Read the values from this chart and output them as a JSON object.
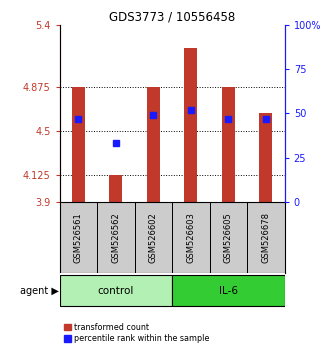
{
  "title": "GDS3773 / 10556458",
  "samples": [
    "GSM526561",
    "GSM526562",
    "GSM526602",
    "GSM526603",
    "GSM526605",
    "GSM526678"
  ],
  "transformed_counts": [
    4.875,
    4.125,
    4.875,
    5.2,
    4.875,
    4.65
  ],
  "percentile_ranks": [
    47,
    33,
    49,
    52,
    47,
    47
  ],
  "groups": [
    "control",
    "control",
    "control",
    "IL-6",
    "IL-6",
    "IL-6"
  ],
  "ylim": [
    3.9,
    5.4
  ],
  "yticks": [
    3.9,
    4.125,
    4.5,
    4.875,
    5.4
  ],
  "ytick_labels": [
    "3.9",
    "4.125",
    "4.5",
    "4.875",
    "5.4"
  ],
  "hlines": [
    4.125,
    4.5,
    4.875
  ],
  "right_yticks": [
    0,
    25,
    50,
    75,
    100
  ],
  "right_ytick_labels": [
    "0",
    "25",
    "50",
    "75",
    "100%"
  ],
  "bar_color": "#c0392b",
  "bar_bottom": 3.9,
  "dot_color": "#1a1aff",
  "control_color": "#b3f0b3",
  "il6_color": "#33cc33",
  "sample_box_color": "#cccccc",
  "bar_width": 0.35,
  "legend_labels": [
    "transformed count",
    "percentile rank within the sample"
  ]
}
